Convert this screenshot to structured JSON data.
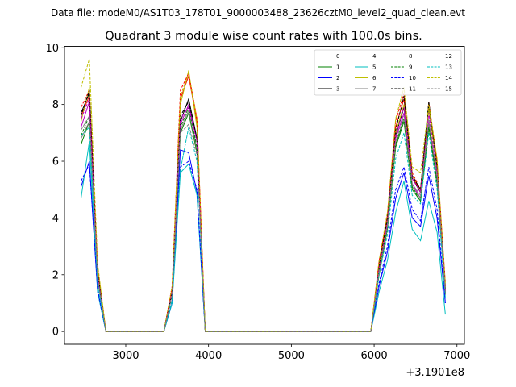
{
  "header": {
    "suptitle": "Data file: modeM0/AS1T03_178T01_9000003488_23626cztM0_level2_quad_clean.evt"
  },
  "chart_data": {
    "type": "line",
    "title": "Quadrant 3 module wise count rates with 100.0s bins.",
    "xlabel": "",
    "ylabel": "",
    "x_offset_label": "+3.1901e8",
    "xlim": [
      2260,
      7090
    ],
    "ylim": [
      -0.45,
      10.05
    ],
    "xticks": [
      3000,
      4000,
      5000,
      6000,
      7000
    ],
    "yticks": [
      0,
      2,
      4,
      6,
      8,
      10
    ],
    "grid": false,
    "legend_position": "top-right",
    "x": [
      2460,
      2560,
      2660,
      2760,
      3460,
      3560,
      3660,
      3760,
      3860,
      3960,
      5960,
      6060,
      6160,
      6260,
      6360,
      6460,
      6560,
      6660,
      6760,
      6860
    ],
    "series": [
      {
        "name": "0",
        "color": "#ff0000",
        "dash": false,
        "values": [
          7.6,
          8.3,
          2.2,
          0,
          0,
          1.5,
          8.2,
          9.0,
          7.4,
          0,
          0,
          2.4,
          4.0,
          7.2,
          8.2,
          5.5,
          4.9,
          7.9,
          5.9,
          1.6
        ]
      },
      {
        "name": "1",
        "color": "#008000",
        "dash": false,
        "values": [
          6.6,
          7.4,
          1.8,
          0,
          0,
          1.3,
          7.0,
          7.7,
          6.3,
          0,
          0,
          2.0,
          3.6,
          6.5,
          7.4,
          5.0,
          4.6,
          7.2,
          5.2,
          1.3
        ]
      },
      {
        "name": "2",
        "color": "#0000ff",
        "dash": false,
        "values": [
          5.1,
          6.0,
          1.4,
          0,
          0,
          1.0,
          6.4,
          6.3,
          4.9,
          0,
          0,
          1.6,
          2.8,
          4.7,
          5.6,
          4.0,
          3.7,
          5.5,
          4.0,
          1.0
        ]
      },
      {
        "name": "3",
        "color": "#000000",
        "dash": false,
        "values": [
          7.7,
          8.4,
          2.1,
          0,
          0,
          1.4,
          7.4,
          8.2,
          6.8,
          0,
          0,
          2.3,
          3.9,
          6.9,
          7.9,
          5.4,
          4.9,
          8.0,
          5.7,
          1.4
        ]
      },
      {
        "name": "4",
        "color": "#bf00bf",
        "dash": false,
        "values": [
          7.2,
          8.1,
          2.0,
          0,
          0,
          1.4,
          7.3,
          8.0,
          6.7,
          0,
          0,
          2.2,
          3.8,
          6.8,
          7.7,
          5.2,
          4.7,
          7.4,
          5.5,
          1.4
        ]
      },
      {
        "name": "5",
        "color": "#00bfbf",
        "dash": false,
        "values": [
          4.7,
          6.7,
          1.4,
          0,
          0,
          1.0,
          5.6,
          5.9,
          4.8,
          0,
          0,
          1.4,
          2.5,
          4.2,
          5.3,
          3.6,
          3.2,
          4.6,
          3.5,
          0.6
        ]
      },
      {
        "name": "6",
        "color": "#bfbf00",
        "dash": false,
        "values": [
          7.4,
          8.6,
          2.2,
          0,
          0,
          1.5,
          8.0,
          9.2,
          7.2,
          0,
          0,
          2.3,
          4.0,
          7.0,
          8.0,
          5.5,
          5.0,
          7.8,
          5.8,
          1.5
        ]
      },
      {
        "name": "7",
        "color": "#808080",
        "dash": false,
        "values": [
          6.8,
          7.4,
          1.9,
          0,
          0,
          1.3,
          7.1,
          7.8,
          6.4,
          0,
          0,
          2.1,
          3.7,
          6.6,
          7.5,
          5.1,
          4.7,
          7.3,
          5.3,
          1.3
        ]
      },
      {
        "name": "8",
        "color": "#ff0000",
        "dash": true,
        "values": [
          7.9,
          8.5,
          2.3,
          0,
          0,
          1.6,
          8.5,
          9.1,
          7.5,
          0,
          0,
          2.5,
          4.1,
          7.4,
          8.4,
          5.6,
          5.0,
          8.1,
          6.0,
          1.7
        ]
      },
      {
        "name": "9",
        "color": "#008000",
        "dash": true,
        "values": [
          6.9,
          7.6,
          1.9,
          0,
          0,
          1.3,
          7.2,
          7.9,
          6.5,
          0,
          0,
          2.1,
          3.7,
          6.6,
          7.5,
          5.1,
          4.6,
          7.2,
          5.3,
          1.3
        ]
      },
      {
        "name": "10",
        "color": "#0000ff",
        "dash": true,
        "values": [
          5.3,
          5.9,
          1.5,
          0,
          0,
          1.1,
          5.8,
          6.0,
          5.0,
          0,
          0,
          1.7,
          3.0,
          5.0,
          5.8,
          4.3,
          3.9,
          5.8,
          4.3,
          1.0
        ]
      },
      {
        "name": "11",
        "color": "#000000",
        "dash": true,
        "values": [
          7.6,
          8.5,
          2.1,
          0,
          0,
          1.4,
          7.6,
          8.1,
          6.8,
          0,
          0,
          2.3,
          4.0,
          7.1,
          8.3,
          5.5,
          5.0,
          8.1,
          5.8,
          1.5
        ]
      },
      {
        "name": "12",
        "color": "#bf00bf",
        "dash": true,
        "values": [
          7.5,
          8.2,
          2.0,
          0,
          0,
          1.4,
          7.5,
          7.9,
          6.7,
          0,
          0,
          2.2,
          3.8,
          6.9,
          7.9,
          5.4,
          4.9,
          7.7,
          5.6,
          1.4
        ]
      },
      {
        "name": "13",
        "color": "#00bfbf",
        "dash": true,
        "values": [
          6.9,
          7.2,
          1.7,
          0,
          0,
          1.1,
          5.7,
          7.2,
          6.0,
          0,
          0,
          2.0,
          3.4,
          6.1,
          7.0,
          4.8,
          4.5,
          7.0,
          5.0,
          1.2
        ]
      },
      {
        "name": "14",
        "color": "#bfbf00",
        "dash": true,
        "values": [
          8.6,
          9.6,
          2.4,
          0,
          0,
          1.6,
          8.3,
          9.1,
          7.5,
          0,
          0,
          2.5,
          4.2,
          7.5,
          8.6,
          5.8,
          5.6,
          8.0,
          6.1,
          1.7
        ]
      },
      {
        "name": "15",
        "color": "#808080",
        "dash": true,
        "values": [
          7.1,
          7.6,
          1.9,
          0,
          0,
          1.3,
          7.0,
          7.3,
          6.2,
          0,
          0,
          2.1,
          3.7,
          6.7,
          7.6,
          5.2,
          4.8,
          7.5,
          5.5,
          1.4
        ]
      }
    ]
  }
}
